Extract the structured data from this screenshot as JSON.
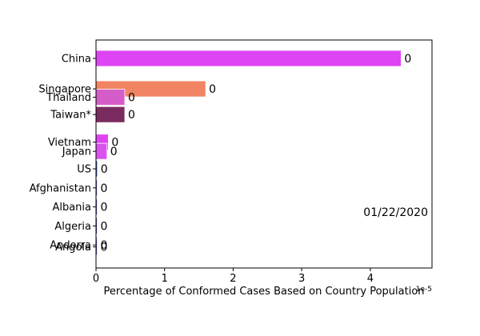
{
  "chart_data": {
    "type": "bar",
    "orientation": "horizontal",
    "title": "",
    "xlabel": "Percentage of Conformed Cases Based on Country Population",
    "x_multiplier_label": "1e-5",
    "ylabel": "",
    "date_label": "01/22/2020",
    "xlim": [
      0,
      4.9
    ],
    "x_ticks": [
      0,
      1,
      2,
      3,
      4
    ],
    "grid": false,
    "bars": [
      {
        "country": "China",
        "value": 4.45,
        "label": "0",
        "color": "#df44f4",
        "pos": 0
      },
      {
        "country": "Singapore",
        "value": 1.6,
        "label": "0",
        "color": "#f18463",
        "pos": 1.6
      },
      {
        "country": "Thailand",
        "value": 0.42,
        "label": "0",
        "color": "#d55dc9",
        "pos": 2.04
      },
      {
        "country": "Taiwan*",
        "value": 0.42,
        "label": "0",
        "color": "#7a2c60",
        "pos": 2.95
      },
      {
        "country": "Vietnam",
        "value": 0.18,
        "label": "0",
        "color": "#df44f4",
        "pos": 4.4
      },
      {
        "country": "Japan",
        "value": 0.16,
        "label": "0",
        "color": "#da52f0",
        "pos": 4.88
      },
      {
        "country": "US",
        "value": 0.02,
        "label": "0",
        "color": "#2c3f8a",
        "pos": 5.8
      },
      {
        "country": "Afghanistan",
        "value": 0,
        "label": "0",
        "color": "#4b3f99",
        "pos": 6.8
      },
      {
        "country": "Albania",
        "value": 0,
        "label": "0",
        "color": "#4b3f99",
        "pos": 7.8
      },
      {
        "country": "Algeria",
        "value": 0,
        "label": "0",
        "color": "#4b3f99",
        "pos": 8.8
      },
      {
        "country": "Andorra",
        "value": 0,
        "label": "0",
        "color": "#4b3f99",
        "pos": 9.8
      },
      {
        "country": "Angola",
        "value": 0,
        "label": "0",
        "color": "#4b3f99",
        "pos": 9.9
      }
    ]
  }
}
